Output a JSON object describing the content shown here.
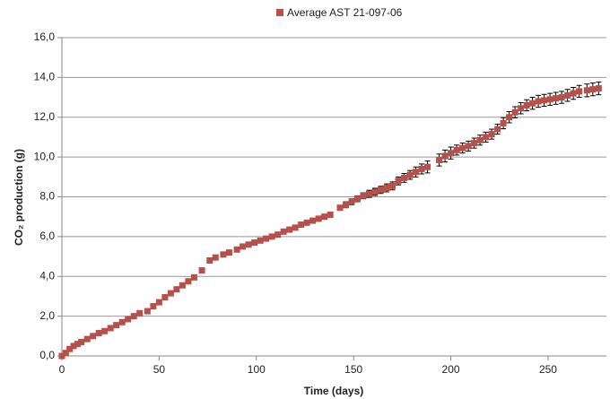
{
  "chart_data": {
    "type": "scatter",
    "x_label": "Time (days)",
    "y_label": "CO₂ production (g)",
    "x": [
      0,
      2,
      4,
      6,
      8,
      10,
      13,
      16,
      19,
      22,
      25,
      28,
      31,
      34,
      37,
      40,
      44,
      47,
      50,
      53,
      56,
      59,
      62,
      65,
      68,
      72,
      76,
      79,
      83,
      86,
      90,
      93,
      96,
      99,
      102,
      105,
      108,
      111,
      114,
      117,
      120,
      123,
      126,
      129,
      132,
      135,
      138,
      143,
      146,
      149,
      152,
      155,
      158,
      161,
      164,
      167,
      170,
      173,
      176,
      179,
      182,
      185,
      188,
      194,
      197,
      200,
      203,
      206,
      209,
      212,
      215,
      218,
      221,
      224,
      227,
      230,
      233,
      236,
      239,
      242,
      245,
      248,
      251,
      254,
      257,
      260,
      263,
      266,
      270,
      273,
      276
    ],
    "series": [
      {
        "name": "Average AST 21-097-06",
        "color": "#b5504b",
        "values": [
          0,
          0.15,
          0.35,
          0.5,
          0.6,
          0.7,
          0.85,
          1.0,
          1.15,
          1.25,
          1.4,
          1.55,
          1.7,
          1.85,
          2.0,
          2.15,
          2.25,
          2.5,
          2.7,
          2.95,
          3.15,
          3.35,
          3.55,
          3.75,
          3.95,
          4.3,
          4.8,
          4.95,
          5.1,
          5.2,
          5.35,
          5.5,
          5.6,
          5.7,
          5.8,
          5.9,
          6.0,
          6.1,
          6.25,
          6.35,
          6.45,
          6.6,
          6.7,
          6.8,
          6.9,
          7.0,
          7.1,
          7.45,
          7.6,
          7.75,
          7.9,
          8.05,
          8.15,
          8.25,
          8.35,
          8.45,
          8.55,
          8.8,
          8.95,
          9.1,
          9.25,
          9.4,
          9.5,
          9.85,
          10.05,
          10.2,
          10.35,
          10.45,
          10.55,
          10.7,
          10.85,
          11.0,
          11.15,
          11.4,
          11.7,
          12.0,
          12.25,
          12.45,
          12.6,
          12.7,
          12.8,
          12.85,
          12.9,
          12.95,
          13.0,
          13.1,
          13.2,
          13.3,
          13.35,
          13.4,
          13.45
        ],
        "errors": [
          0.03,
          0.03,
          0.03,
          0.03,
          0.03,
          0.04,
          0.04,
          0.04,
          0.04,
          0.04,
          0.05,
          0.05,
          0.05,
          0.05,
          0.05,
          0.05,
          0.05,
          0.06,
          0.06,
          0.06,
          0.06,
          0.06,
          0.06,
          0.07,
          0.07,
          0.07,
          0.07,
          0.07,
          0.08,
          0.08,
          0.08,
          0.08,
          0.08,
          0.08,
          0.1,
          0.1,
          0.1,
          0.1,
          0.12,
          0.12,
          0.12,
          0.12,
          0.12,
          0.12,
          0.12,
          0.12,
          0.12,
          0.12,
          0.15,
          0.15,
          0.15,
          0.15,
          0.18,
          0.18,
          0.18,
          0.2,
          0.2,
          0.2,
          0.22,
          0.22,
          0.25,
          0.25,
          0.3,
          0.3,
          0.3,
          0.3,
          0.25,
          0.25,
          0.25,
          0.25,
          0.25,
          0.25,
          0.25,
          0.25,
          0.28,
          0.28,
          0.28,
          0.28,
          0.28,
          0.3,
          0.3,
          0.3,
          0.3,
          0.3,
          0.3,
          0.3,
          0.3,
          0.3,
          0.32,
          0.32,
          0.32
        ]
      }
    ],
    "xlim": [
      0,
      280
    ],
    "xticks": [
      0,
      50,
      100,
      150,
      200,
      250
    ],
    "ylim": [
      0,
      16
    ],
    "yticks": [
      {
        "value": 0,
        "label": "0,0"
      },
      {
        "value": 2,
        "label": "2,0"
      },
      {
        "value": 4,
        "label": "4,0"
      },
      {
        "value": 6,
        "label": "6,0"
      },
      {
        "value": 8,
        "label": "8,0"
      },
      {
        "value": 10,
        "label": "10,0"
      },
      {
        "value": 12,
        "label": "12,0"
      },
      {
        "value": 14,
        "label": "14,0"
      },
      {
        "value": 16,
        "label": "16,0"
      }
    ],
    "grid": true,
    "legend": "top"
  }
}
